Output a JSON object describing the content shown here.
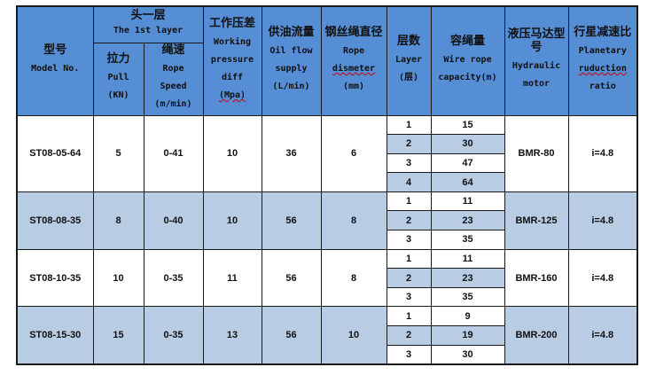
{
  "header": {
    "model": {
      "cn": "型号",
      "en": "Model No."
    },
    "first_layer": {
      "cn": "头一层",
      "en": "The 1st layer"
    },
    "pull": {
      "cn": "拉力",
      "en1": "Pull",
      "en2": "(KN)"
    },
    "rope_speed": {
      "cn": "绳速",
      "en1": "Rope",
      "en2": "Speed",
      "en3": "(m/min)"
    },
    "pressure": {
      "cn": "工作压差",
      "en1": "Working",
      "en2": "pressure",
      "en3": "diff",
      "en4": "(Mpa)"
    },
    "oil_flow": {
      "cn": "供油流量",
      "en1": "Oil flow",
      "en2": "supply",
      "en3": "(L/min)"
    },
    "rope_diameter": {
      "cn": "钢丝绳直径",
      "en1": "Rope",
      "en2": "dismeter",
      "en3": "(mm)"
    },
    "layer": {
      "cn": "层数",
      "en1": "Layer",
      "en2": "(层)"
    },
    "capacity": {
      "cn": "容绳量",
      "en1": "Wire rope",
      "en2": "capacity(m)"
    },
    "motor": {
      "cn1": "液压马达型",
      "cn2": "号",
      "en1": "Hydraulic",
      "en2": "motor"
    },
    "ratio": {
      "cn": "行星减速比",
      "en1": "Planetary",
      "en2": "ruduction",
      "en3": "ratio"
    }
  },
  "colors": {
    "header": "#558ed5",
    "row_alt": "#b8cce4",
    "row": "#ffffff"
  },
  "rows": [
    {
      "model": "ST08-05-64",
      "pull": "5",
      "speed": "0-41",
      "pressure": "10",
      "flow": "36",
      "diameter": "6",
      "layers": [
        {
          "layer": "1",
          "cap": "15"
        },
        {
          "layer": "2",
          "cap": "30"
        },
        {
          "layer": "3",
          "cap": "47"
        },
        {
          "layer": "4",
          "cap": "64"
        }
      ],
      "motor": "BMR-80",
      "ratio": "i=4.8"
    },
    {
      "model": "ST08-08-35",
      "pull": "8",
      "speed": "0-40",
      "pressure": "10",
      "flow": "56",
      "diameter": "8",
      "layers": [
        {
          "layer": "1",
          "cap": "11"
        },
        {
          "layer": "2",
          "cap": "23"
        },
        {
          "layer": "3",
          "cap": "35"
        }
      ],
      "motor": "BMR-125",
      "ratio": "i=4.8"
    },
    {
      "model": "ST08-10-35",
      "pull": "10",
      "speed": "0-35",
      "pressure": "11",
      "flow": "56",
      "diameter": "8",
      "layers": [
        {
          "layer": "1",
          "cap": "11"
        },
        {
          "layer": "2",
          "cap": "23"
        },
        {
          "layer": "3",
          "cap": "35"
        }
      ],
      "motor": "BMR-160",
      "ratio": "i=4.8"
    },
    {
      "model": "ST08-15-30",
      "pull": "15",
      "speed": "0-35",
      "pressure": "13",
      "flow": "56",
      "diameter": "10",
      "layers": [
        {
          "layer": "1",
          "cap": "9"
        },
        {
          "layer": "2",
          "cap": "19"
        },
        {
          "layer": "3",
          "cap": "30"
        }
      ],
      "motor": "BMR-200",
      "ratio": "i=4.8"
    }
  ]
}
